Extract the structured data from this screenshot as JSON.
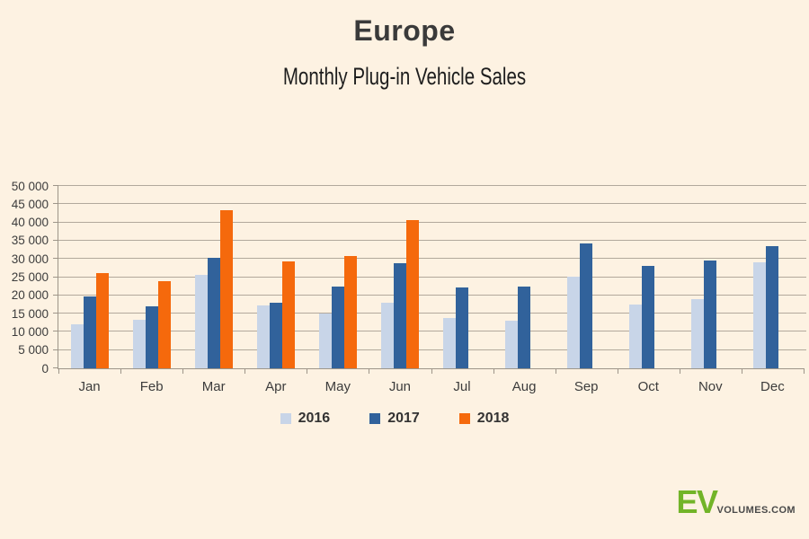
{
  "header": {
    "title": "Europe",
    "subtitle": "Monthly Plug-in Vehicle Sales"
  },
  "chart_data": {
    "type": "bar",
    "title": "Europe",
    "subtitle": "Monthly Plug-in Vehicle Sales",
    "categories": [
      "Jan",
      "Feb",
      "Mar",
      "Apr",
      "May",
      "Jun",
      "Jul",
      "Aug",
      "Sep",
      "Oct",
      "Nov",
      "Dec"
    ],
    "series": [
      {
        "name": "2016",
        "color": "#c8d5e8",
        "values": [
          12000,
          13300,
          25500,
          17300,
          15000,
          17900,
          13900,
          13100,
          25100,
          17500,
          19000,
          29000
        ]
      },
      {
        "name": "2017",
        "color": "#31629b",
        "values": [
          19600,
          16900,
          30300,
          18100,
          22500,
          28800,
          22100,
          22400,
          34200,
          28000,
          29600,
          33400
        ]
      },
      {
        "name": "2018",
        "color": "#f5690c",
        "values": [
          26100,
          24000,
          43400,
          29400,
          30800,
          40600,
          null,
          null,
          null,
          null,
          null,
          null
        ]
      }
    ],
    "ylim": [
      0,
      50000
    ],
    "ytick_step": 5000,
    "ytick_labels": [
      "0",
      "5 000",
      "10 000",
      "15 000",
      "20 000",
      "25 000",
      "30 000",
      "35 000",
      "40 000",
      "45 000",
      "50 000"
    ],
    "grid": true,
    "legend_position": "bottom"
  },
  "branding": {
    "logo_ev": "EV",
    "logo_suffix": "VOLUMES.COM",
    "logo_green": "#72b428",
    "logo_gray": "#4a4a4a"
  },
  "colors": {
    "background": "#fdf2e2",
    "gridline": "#b2a99c",
    "axis": "#9d9589",
    "text": "#3c3c3c"
  }
}
